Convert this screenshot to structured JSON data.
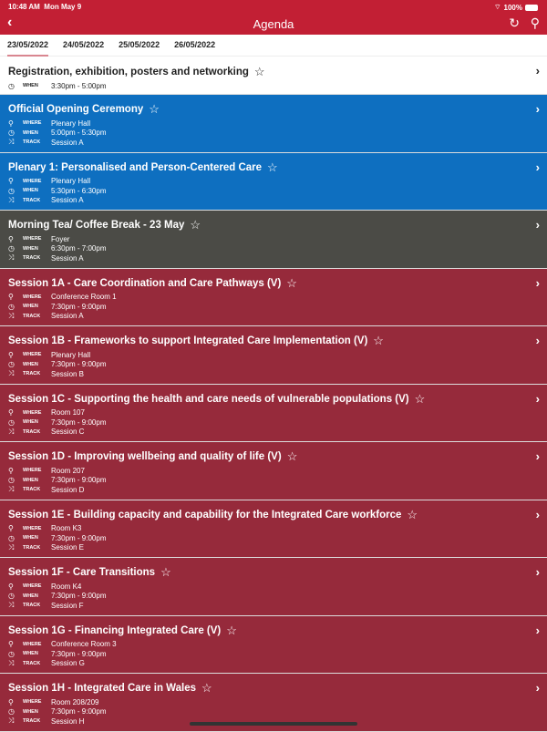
{
  "status": {
    "time": "10:48 AM",
    "date": "Mon May 9",
    "battery": "100%"
  },
  "header": {
    "title": "Agenda",
    "back_icon": "chevron-left",
    "refresh_icon": "refresh",
    "search_icon": "search"
  },
  "tabs": [
    "23/05/2022",
    "24/05/2022",
    "25/05/2022",
    "26/05/2022"
  ],
  "active_tab": 0,
  "labels": {
    "where": "WHERE",
    "when": "WHEN",
    "track": "TRACK"
  },
  "colors": {
    "header": "#c21f34",
    "blue": "#0e6fc0",
    "gray": "#4b4b46",
    "maroon": "#962a3b"
  },
  "items": [
    {
      "title": "Registration, exhibition, posters and networking",
      "when": "3:30pm - 5:00pm",
      "color": "white"
    },
    {
      "title": "Official Opening Ceremony",
      "where": "Plenary Hall",
      "when": "5:00pm - 5:30pm",
      "track": "Session A",
      "color": "blue"
    },
    {
      "title": "Plenary 1: Personalised and Person-Centered Care",
      "where": "Plenary Hall",
      "when": "5:30pm - 6:30pm",
      "track": "Session A",
      "color": "blue"
    },
    {
      "title": "Morning Tea/ Coffee Break - 23 May",
      "where": "Foyer",
      "when": "6:30pm - 7:00pm",
      "track": "Session A",
      "color": "gray"
    },
    {
      "title": "Session 1A - Care Coordination and Care Pathways (V)",
      "where": "Conference Room 1",
      "when": "7:30pm - 9:00pm",
      "track": "Session A",
      "color": "maroon"
    },
    {
      "title": "Session 1B - Frameworks to support Integrated Care Implementation (V)",
      "where": "Plenary Hall",
      "when": "7:30pm - 9:00pm",
      "track": "Session B",
      "color": "maroon"
    },
    {
      "title": "Session 1C - Supporting the health and care needs of vulnerable populations (V)",
      "where": "Room 107",
      "when": "7:30pm - 9:00pm",
      "track": "Session C",
      "color": "maroon"
    },
    {
      "title": "Session 1D - Improving wellbeing and quality of life (V)",
      "where": "Room 207",
      "when": "7:30pm - 9:00pm",
      "track": "Session D",
      "color": "maroon"
    },
    {
      "title": "Session 1E - Building capacity and capability for the Integrated Care workforce",
      "where": "Room K3",
      "when": "7:30pm - 9:00pm",
      "track": "Session E",
      "color": "maroon"
    },
    {
      "title": "Session 1F - Care Transitions",
      "where": "Room K4",
      "when": "7:30pm - 9:00pm",
      "track": "Session F",
      "color": "maroon"
    },
    {
      "title": "Session 1G - Financing Integrated Care (V)",
      "where": "Conference Room 3",
      "when": "7:30pm - 9:00pm",
      "track": "Session G",
      "color": "maroon"
    },
    {
      "title": "Session 1H - Integrated Care in Wales",
      "where": "Room 208/209",
      "when": "7:30pm - 9:00pm",
      "track": "Session H",
      "color": "maroon"
    }
  ]
}
